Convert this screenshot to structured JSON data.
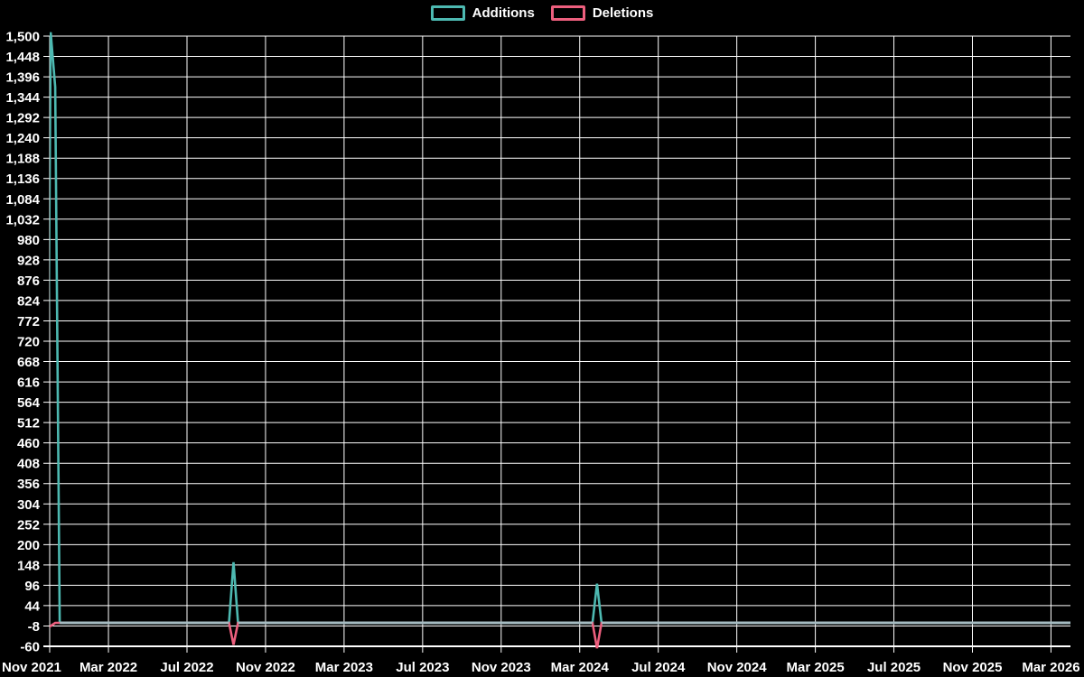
{
  "chart_data": {
    "type": "line",
    "title": "",
    "legend_position": "top-center",
    "grid": true,
    "background_color": "#000000",
    "grid_color": "#ffffff",
    "text_color": "#ffffff",
    "overlap_line_color": "#a5bbc1",
    "x_axis": {
      "unit": "months after first tick (Nov 2021)",
      "tick_interval_months": 4,
      "tick_labels": [
        "Nov 2021",
        "Mar 2022",
        "Jul 2022",
        "Nov 2022",
        "Mar 2023",
        "Jul 2023",
        "Nov 2023",
        "Mar 2024",
        "Jul 2024",
        "Nov 2024",
        "Mar 2025",
        "Jul 2025",
        "Nov 2025",
        "Mar 2026"
      ]
    },
    "y_axis": {
      "min": -60,
      "max": 1500,
      "step": 52,
      "ticks": [
        -60,
        -8,
        44,
        96,
        148,
        200,
        252,
        304,
        356,
        408,
        460,
        512,
        564,
        616,
        668,
        720,
        772,
        824,
        876,
        928,
        980,
        1032,
        1084,
        1136,
        1188,
        1240,
        1292,
        1344,
        1396,
        1448,
        1500
      ]
    },
    "series": [
      {
        "name": "Additions",
        "color": "#4db9b1",
        "points": [
          [
            0.85,
            0
          ],
          [
            1.06,
            1510
          ],
          [
            1.29,
            1370
          ],
          [
            1.52,
            0
          ],
          [
            10.14,
            0
          ],
          [
            10.37,
            155
          ],
          [
            10.6,
            0
          ],
          [
            28.65,
            0
          ],
          [
            28.88,
            100
          ],
          [
            29.11,
            0
          ],
          [
            53.0,
            0
          ]
        ]
      },
      {
        "name": "Deletions",
        "color": "#ed5f7e",
        "points": [
          [
            0.6,
            -22
          ],
          [
            1.06,
            -8
          ],
          [
            1.29,
            0
          ],
          [
            10.14,
            0
          ],
          [
            10.37,
            -56
          ],
          [
            10.6,
            0
          ],
          [
            28.65,
            0
          ],
          [
            28.88,
            -65
          ],
          [
            29.11,
            0
          ],
          [
            53.0,
            0
          ]
        ]
      }
    ]
  }
}
